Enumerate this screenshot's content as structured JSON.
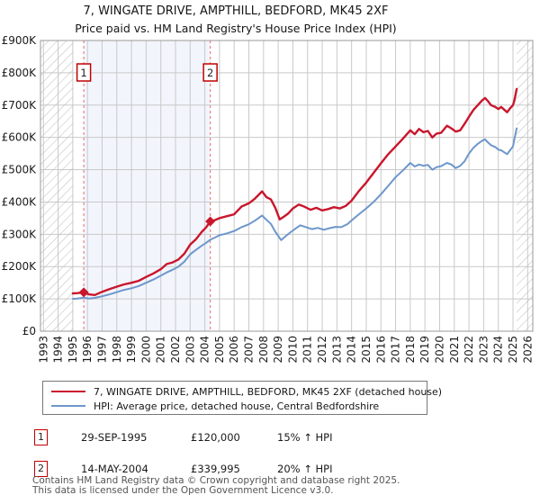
{
  "title": "7, WINGATE DRIVE, AMPTHILL, BEDFORD, MK45 2XF",
  "subtitle": "Price paid vs. HM Land Registry's House Price Index (HPI)",
  "chart_data": {
    "type": "line",
    "title": "7, WINGATE DRIVE, AMPTHILL, BEDFORD, MK45 2XF",
    "xlabel": "",
    "ylabel": "",
    "x_range": [
      1993,
      2026
    ],
    "ylim": [
      0,
      900000
    ],
    "grid": true,
    "x_ticks": [
      1993,
      1994,
      1995,
      1996,
      1997,
      1998,
      1999,
      2000,
      2001,
      2002,
      2003,
      2004,
      2005,
      2006,
      2007,
      2008,
      2009,
      2010,
      2011,
      2012,
      2013,
      2014,
      2015,
      2016,
      2017,
      2018,
      2019,
      2020,
      2021,
      2022,
      2023,
      2024,
      2025,
      2026
    ],
    "y_tick_labels": [
      "£0",
      "£100K",
      "£200K",
      "£300K",
      "£400K",
      "£500K",
      "£600K",
      "£700K",
      "£800K",
      "£900K"
    ],
    "shaded_region": [
      1995.75,
      2004.37
    ],
    "series": [
      {
        "name": "7, WINGATE DRIVE, AMPTHILL, BEDFORD, MK45 2XF (detached house)",
        "color": "#c9162c",
        "width": 2.4,
        "points": [
          [
            1995.0,
            117000
          ],
          [
            1995.3,
            118000
          ],
          [
            1995.75,
            120000
          ],
          [
            1996.1,
            114000
          ],
          [
            1996.5,
            112000
          ],
          [
            1997.0,
            122000
          ],
          [
            1997.5,
            130000
          ],
          [
            1998.0,
            138000
          ],
          [
            1998.5,
            145000
          ],
          [
            1999.0,
            150000
          ],
          [
            1999.5,
            156000
          ],
          [
            2000.0,
            168000
          ],
          [
            2000.5,
            179000
          ],
          [
            2001.0,
            192000
          ],
          [
            2001.4,
            208000
          ],
          [
            2001.8,
            213000
          ],
          [
            2002.2,
            222000
          ],
          [
            2002.6,
            240000
          ],
          [
            2003.0,
            268000
          ],
          [
            2003.4,
            285000
          ],
          [
            2003.8,
            308000
          ],
          [
            2004.1,
            322000
          ],
          [
            2004.37,
            339995
          ],
          [
            2004.7,
            344000
          ],
          [
            2005.0,
            350000
          ],
          [
            2005.5,
            356000
          ],
          [
            2006.0,
            362000
          ],
          [
            2006.5,
            386000
          ],
          [
            2007.0,
            396000
          ],
          [
            2007.4,
            410000
          ],
          [
            2007.9,
            433000
          ],
          [
            2008.2,
            415000
          ],
          [
            2008.5,
            408000
          ],
          [
            2008.8,
            382000
          ],
          [
            2009.1,
            346000
          ],
          [
            2009.4,
            355000
          ],
          [
            2009.7,
            365000
          ],
          [
            2010.0,
            380000
          ],
          [
            2010.4,
            392000
          ],
          [
            2010.8,
            385000
          ],
          [
            2011.2,
            376000
          ],
          [
            2011.6,
            382000
          ],
          [
            2012.0,
            374000
          ],
          [
            2012.4,
            378000
          ],
          [
            2012.8,
            384000
          ],
          [
            2013.2,
            380000
          ],
          [
            2013.6,
            388000
          ],
          [
            2014.0,
            404000
          ],
          [
            2014.5,
            434000
          ],
          [
            2015.0,
            460000
          ],
          [
            2015.5,
            490000
          ],
          [
            2016.0,
            520000
          ],
          [
            2016.5,
            548000
          ],
          [
            2017.0,
            572000
          ],
          [
            2017.5,
            596000
          ],
          [
            2018.0,
            622000
          ],
          [
            2018.3,
            610000
          ],
          [
            2018.6,
            626000
          ],
          [
            2018.9,
            616000
          ],
          [
            2019.2,
            620000
          ],
          [
            2019.5,
            600000
          ],
          [
            2019.8,
            612000
          ],
          [
            2020.1,
            614000
          ],
          [
            2020.5,
            636000
          ],
          [
            2020.8,
            628000
          ],
          [
            2021.1,
            618000
          ],
          [
            2021.4,
            622000
          ],
          [
            2021.7,
            642000
          ],
          [
            2022.0,
            664000
          ],
          [
            2022.3,
            685000
          ],
          [
            2022.6,
            700000
          ],
          [
            2022.9,
            715000
          ],
          [
            2023.1,
            722000
          ],
          [
            2023.3,
            712000
          ],
          [
            2023.5,
            700000
          ],
          [
            2023.8,
            694000
          ],
          [
            2024.0,
            688000
          ],
          [
            2024.2,
            694000
          ],
          [
            2024.4,
            686000
          ],
          [
            2024.6,
            678000
          ],
          [
            2024.8,
            690000
          ],
          [
            2025.0,
            700000
          ],
          [
            2025.1,
            715000
          ],
          [
            2025.25,
            750000
          ]
        ]
      },
      {
        "name": "HPI: Average price, detached house, Central Bedfordshire",
        "color": "#6d97cb",
        "width": 2,
        "points": [
          [
            1995.0,
            100000
          ],
          [
            1995.3,
            101000
          ],
          [
            1995.75,
            104000
          ],
          [
            1996.1,
            101000
          ],
          [
            1996.5,
            103000
          ],
          [
            1997.0,
            108000
          ],
          [
            1997.5,
            114000
          ],
          [
            1998.0,
            121000
          ],
          [
            1998.5,
            128000
          ],
          [
            1999.0,
            133000
          ],
          [
            1999.5,
            140000
          ],
          [
            2000.0,
            150000
          ],
          [
            2000.5,
            160000
          ],
          [
            2001.0,
            172000
          ],
          [
            2001.4,
            182000
          ],
          [
            2001.8,
            190000
          ],
          [
            2002.2,
            200000
          ],
          [
            2002.6,
            215000
          ],
          [
            2003.0,
            238000
          ],
          [
            2003.4,
            252000
          ],
          [
            2003.8,
            265000
          ],
          [
            2004.1,
            274000
          ],
          [
            2004.37,
            283000
          ],
          [
            2004.7,
            290000
          ],
          [
            2005.0,
            297000
          ],
          [
            2005.5,
            303000
          ],
          [
            2006.0,
            310000
          ],
          [
            2006.5,
            322000
          ],
          [
            2007.0,
            331000
          ],
          [
            2007.4,
            342000
          ],
          [
            2007.9,
            358000
          ],
          [
            2008.2,
            345000
          ],
          [
            2008.5,
            332000
          ],
          [
            2008.8,
            308000
          ],
          [
            2009.2,
            282000
          ],
          [
            2009.5,
            294000
          ],
          [
            2009.8,
            305000
          ],
          [
            2010.1,
            315000
          ],
          [
            2010.5,
            328000
          ],
          [
            2010.9,
            322000
          ],
          [
            2011.3,
            316000
          ],
          [
            2011.7,
            320000
          ],
          [
            2012.1,
            314000
          ],
          [
            2012.5,
            319000
          ],
          [
            2012.9,
            323000
          ],
          [
            2013.3,
            322000
          ],
          [
            2013.7,
            331000
          ],
          [
            2014.1,
            347000
          ],
          [
            2014.5,
            362000
          ],
          [
            2015.0,
            380000
          ],
          [
            2015.5,
            400000
          ],
          [
            2016.0,
            424000
          ],
          [
            2016.5,
            450000
          ],
          [
            2017.0,
            477000
          ],
          [
            2017.5,
            498000
          ],
          [
            2018.0,
            521000
          ],
          [
            2018.3,
            510000
          ],
          [
            2018.6,
            516000
          ],
          [
            2018.9,
            512000
          ],
          [
            2019.2,
            515000
          ],
          [
            2019.5,
            500000
          ],
          [
            2019.8,
            508000
          ],
          [
            2020.1,
            511000
          ],
          [
            2020.5,
            521000
          ],
          [
            2020.8,
            516000
          ],
          [
            2021.1,
            505000
          ],
          [
            2021.4,
            512000
          ],
          [
            2021.7,
            526000
          ],
          [
            2022.0,
            550000
          ],
          [
            2022.3,
            568000
          ],
          [
            2022.6,
            580000
          ],
          [
            2022.9,
            590000
          ],
          [
            2023.1,
            594000
          ],
          [
            2023.3,
            584000
          ],
          [
            2023.5,
            576000
          ],
          [
            2023.8,
            570000
          ],
          [
            2024.0,
            562000
          ],
          [
            2024.2,
            560000
          ],
          [
            2024.4,
            554000
          ],
          [
            2024.6,
            548000
          ],
          [
            2024.8,
            560000
          ],
          [
            2025.0,
            572000
          ],
          [
            2025.1,
            595000
          ],
          [
            2025.25,
            628000
          ]
        ]
      }
    ],
    "markers": [
      {
        "label": "1",
        "x": 1995.75,
        "value": 120000
      },
      {
        "label": "2",
        "x": 2004.37,
        "value": 339995
      }
    ],
    "legend_position": "bottom"
  },
  "colors": {
    "property_line": "#c9162c",
    "hpi_line": "#6d97cb",
    "marker_dash": "#ef8080",
    "marker_box_border": "#c00000",
    "shaded_band": "#f2f5fc",
    "grid": "#c9c9c9",
    "hatch": "#bbbbbb",
    "plot_border": "#999999"
  },
  "legend": {
    "items": [
      {
        "label": "7, WINGATE DRIVE, AMPTHILL, BEDFORD, MK45 2XF (detached house)"
      },
      {
        "label": "HPI: Average price, detached house, Central Bedfordshire"
      }
    ]
  },
  "transactions": [
    {
      "num": "1",
      "date": "29-SEP-1995",
      "price": "£120,000",
      "hpi": "15% ↑ HPI"
    },
    {
      "num": "2",
      "date": "14-MAY-2004",
      "price": "£339,995",
      "hpi": "20% ↑ HPI"
    }
  ],
  "footer": {
    "line1": "Contains HM Land Registry data © Crown copyright and database right 2025.",
    "line2": "This data is licensed under the Open Government Licence v3.0."
  }
}
